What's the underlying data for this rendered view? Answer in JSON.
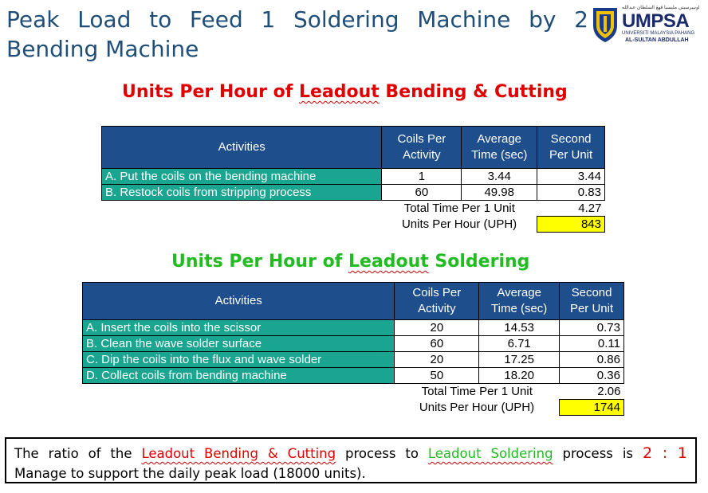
{
  "title": "Peak Load to Feed 1 Soldering Machine by 2 Bending Machine",
  "logo": {
    "arabic": "اونيبرسيتي مليسيا ڤهڠ السلطان عبدالله",
    "name_part1": "UMP",
    "name_part2": "SA",
    "subtitle1": "UNIVERSITI MALAYSIA PAHANG",
    "subtitle2": "AL-SULTAN ABDULLAH"
  },
  "section1": {
    "title_prefix": "Units Per Hour of ",
    "title_underlined": "Leadout",
    "title_suffix": " Bending & Cutting",
    "headers": [
      "Activities",
      "Coils Per Activity",
      "Average Time (sec)",
      "Second Per Unit"
    ],
    "rows": [
      {
        "activity": "A. Put the coils on the bending machine",
        "coils": "1",
        "avg": "3.44",
        "spu": "3.44"
      },
      {
        "activity": "B. Restock coils from stripping process",
        "coils": "60",
        "avg": "49.98",
        "spu": "0.83"
      }
    ],
    "total_label": "Total Time Per 1 Unit",
    "total_value": "4.27",
    "uph_label": "Units Per Hour (UPH)",
    "uph_value": "843"
  },
  "section2": {
    "title_prefix": "Units Per Hour of ",
    "title_underlined": "Leadout",
    "title_suffix": " Soldering",
    "headers": [
      "Activities",
      "Coils Per Activity",
      "Average Time (sec)",
      "Second Per Unit"
    ],
    "rows": [
      {
        "activity": "A. Insert the coils into the scissor",
        "coils": "20",
        "avg": "14.53",
        "spu": "0.73"
      },
      {
        "activity": "B. Clean the wave solder surface",
        "coils": "60",
        "avg": "6.71",
        "spu": "0.11"
      },
      {
        "activity": "C. Dip the coils into the flux and wave solder",
        "coils": "20",
        "avg": "17.25",
        "spu": "0.86"
      },
      {
        "activity": "D. Collect coils from bending machine",
        "coils": "50",
        "avg": "18.20",
        "spu": "0.36"
      }
    ],
    "total_label": "Total Time Per 1 Unit",
    "total_value": "2.06",
    "uph_label": "Units Per Hour (UPH)",
    "uph_value": "1744"
  },
  "note": {
    "part1": "The ratio of the ",
    "process1": "Leadout Bending & Cutting",
    "part2": " process to ",
    "process2": "Leadout Soldering",
    "part3": " process is ",
    "ratio": "2 : 1",
    "line2": "Manage to support the daily peak load (18000 units)."
  },
  "colors": {
    "title": "#1f4e79",
    "header_bg": "#1f4e8c",
    "activity_bg": "#19a58f",
    "uph_highlight": "#ffff00",
    "section1_title": "#e00000",
    "section2_title": "#22bb22"
  }
}
